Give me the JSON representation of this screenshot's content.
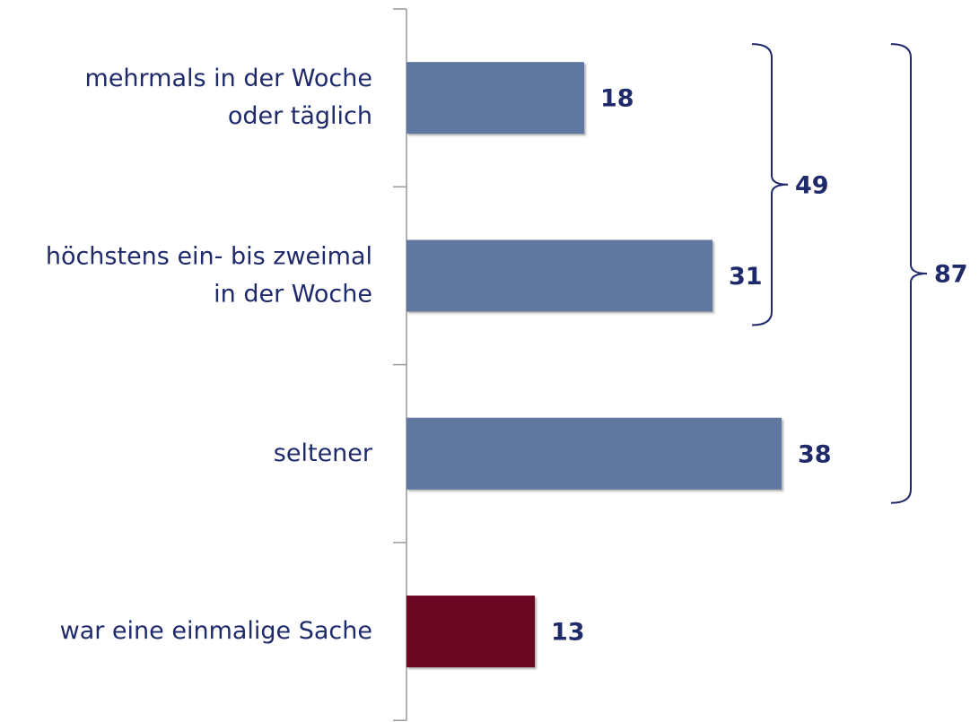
{
  "chart_data": {
    "type": "hbar",
    "categories": [
      "mehrmals in der Woche\noder täglich",
      "höchstens ein- bis zweimal\nin der Woche",
      "seltener",
      "war eine einmalige Sache"
    ],
    "values": [
      18,
      31,
      38,
      13
    ],
    "colors": [
      "#60789f",
      "#60789f",
      "#60789f",
      "#6b0623"
    ],
    "annotations": [
      {
        "value": 49,
        "from": 0,
        "to": 1
      },
      {
        "value": 87,
        "from": 0,
        "to": 2
      }
    ]
  }
}
